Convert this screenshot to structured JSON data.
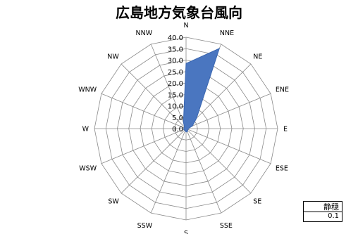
{
  "chart_data": {
    "type": "radar",
    "title": "広島地方気象台風向",
    "categories": [
      "N",
      "NNE",
      "NE",
      "ENE",
      "E",
      "ESE",
      "SE",
      "SSE",
      "S",
      "SSW",
      "SW",
      "WSW",
      "W",
      "WNW",
      "NW",
      "NNW"
    ],
    "series": [
      {
        "values": [
          28.5,
          38.0,
          6.5,
          3.0,
          1.0,
          1.0,
          1.0,
          1.5,
          1.5,
          1.0,
          1.0,
          1.0,
          1.0,
          1.0,
          1.0,
          3.0
        ]
      }
    ],
    "rlim": [
      0,
      40
    ],
    "ticks": [
      "0.0",
      "5.0",
      "10.0",
      "15.0",
      "20.0",
      "25.0",
      "30.0",
      "35.0",
      "40.0"
    ],
    "tick_values": [
      0,
      5,
      10,
      15,
      20,
      25,
      30,
      35,
      40
    ],
    "grid": true,
    "legend": false,
    "series_color": "#4a76c0",
    "series_edge_color": "#3a66b0",
    "grid_color": "#8a8a8a",
    "calm": {
      "label": "静穏",
      "value": "0.1"
    }
  }
}
